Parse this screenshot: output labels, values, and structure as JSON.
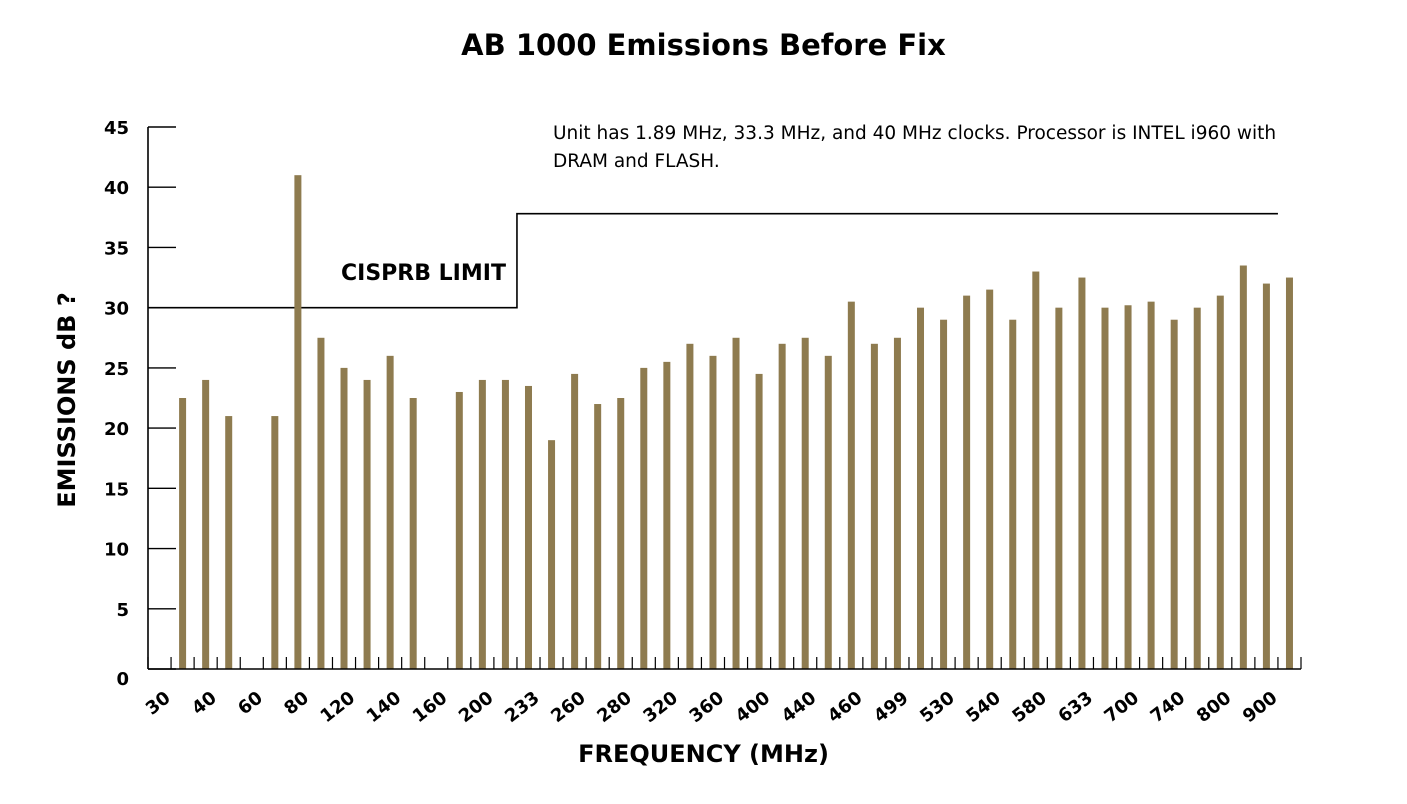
{
  "chart_data": {
    "type": "bar",
    "title": "AB 1000 Emissions Before Fix",
    "xlabel": "FREQUENCY (MHz)",
    "ylabel": "EMISSIONS dB ?",
    "annotation": "Unit has 1.89 MHz, 33.3 MHz, and 40 MHz clocks.  Processor is INTEL i960 with DRAM and FLASH.",
    "limit_label": "CISPRB LIMIT",
    "limit_line": [
      {
        "from_slot": 0,
        "to_slot": 16,
        "value": 30
      },
      {
        "from_slot": 16,
        "to_slot": 49,
        "value": 37.8
      }
    ],
    "ylim": [
      0,
      45
    ],
    "y_ticks": [
      0,
      5,
      10,
      15,
      20,
      25,
      30,
      35,
      40,
      45
    ],
    "x_tick_labels": [
      "30",
      "40",
      "60",
      "80",
      "120",
      "140",
      "160",
      "200",
      "233",
      "260",
      "280",
      "320",
      "360",
      "400",
      "440",
      "460",
      "499",
      "530",
      "540",
      "580",
      "633",
      "700",
      "740",
      "800",
      "900"
    ],
    "values": [
      null,
      22.5,
      24,
      21,
      null,
      21,
      41,
      27.5,
      25,
      24,
      26,
      22.5,
      null,
      23,
      24,
      24,
      23.5,
      19,
      24.5,
      22,
      22.5,
      25,
      25.5,
      27,
      26,
      27.5,
      24.5,
      27,
      27.5,
      26,
      30.5,
      27,
      27.5,
      30,
      29,
      31,
      31.5,
      29,
      33,
      30,
      32.5,
      30,
      30.2,
      30.5,
      29,
      30,
      31,
      33.5,
      32,
      32.5
    ],
    "bar_color": "#8e7b4f",
    "grid": false
  }
}
